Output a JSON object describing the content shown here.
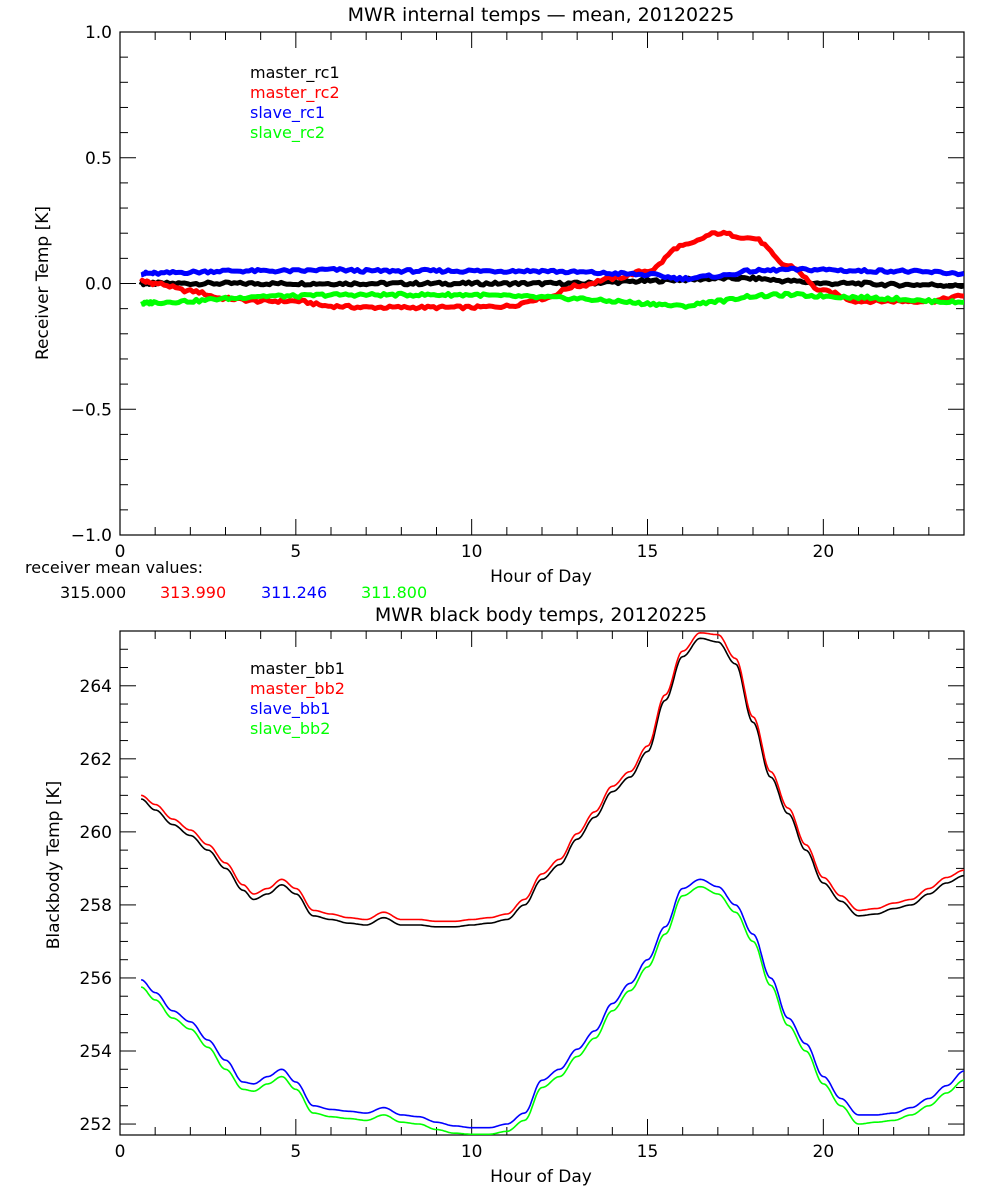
{
  "chart_data": [
    {
      "type": "line",
      "title": "MWR internal temps — mean, 20120225",
      "xlabel": "Hour of Day",
      "ylabel": "Receiver Temp [K]",
      "xlim": [
        0,
        24
      ],
      "ylim": [
        -1.0,
        1.0
      ],
      "xticks": [
        0,
        5,
        10,
        15,
        20
      ],
      "xtick_labels": [
        "0",
        "5",
        "10",
        "15",
        "20"
      ],
      "yticks": [
        -1.0,
        -0.5,
        0.0,
        0.5,
        1.0
      ],
      "ytick_labels": [
        "−1.0",
        "−0.5",
        "0.0",
        "0.5",
        "1.0"
      ],
      "grid": false,
      "legend_position": "top-left",
      "x": [
        0.6,
        1,
        2,
        3,
        4,
        5,
        6,
        7,
        8,
        9,
        10,
        11,
        12,
        13,
        14,
        15,
        16,
        17,
        18,
        19,
        20,
        21,
        22,
        23,
        24
      ],
      "series": [
        {
          "name": "master_rc1",
          "color": "#000000",
          "values": [
            0.0,
            0.0,
            0.0,
            0.0,
            0.0,
            0.0,
            0.0,
            0.0,
            0.0,
            0.0,
            0.0,
            0.0,
            0.0,
            0.0,
            0.005,
            0.01,
            0.015,
            0.02,
            0.02,
            0.01,
            0.0,
            0.0,
            -0.005,
            -0.005,
            -0.01
          ]
        },
        {
          "name": "master_rc2",
          "color": "#ff0000",
          "values": [
            0.01,
            0.0,
            -0.03,
            -0.06,
            -0.07,
            -0.07,
            -0.09,
            -0.095,
            -0.095,
            -0.095,
            -0.095,
            -0.09,
            -0.06,
            -0.01,
            0.02,
            0.05,
            0.15,
            0.2,
            0.18,
            0.07,
            -0.03,
            -0.07,
            -0.07,
            -0.07,
            -0.05
          ]
        },
        {
          "name": "slave_rc1",
          "color": "#0000ff",
          "values": [
            0.04,
            0.04,
            0.045,
            0.05,
            0.05,
            0.05,
            0.055,
            0.05,
            0.05,
            0.05,
            0.05,
            0.05,
            0.05,
            0.045,
            0.04,
            0.035,
            0.02,
            0.03,
            0.05,
            0.055,
            0.055,
            0.05,
            0.05,
            0.045,
            0.04
          ]
        },
        {
          "name": "slave_rc2",
          "color": "#00ff00",
          "values": [
            -0.08,
            -0.075,
            -0.07,
            -0.06,
            -0.05,
            -0.05,
            -0.045,
            -0.045,
            -0.045,
            -0.045,
            -0.045,
            -0.05,
            -0.055,
            -0.06,
            -0.07,
            -0.08,
            -0.09,
            -0.07,
            -0.05,
            -0.045,
            -0.05,
            -0.055,
            -0.06,
            -0.07,
            -0.075
          ]
        }
      ]
    },
    {
      "type": "line",
      "title": "MWR black body temps, 20120225",
      "xlabel": "Hour of Day",
      "ylabel": "Blackbody Temp [K]",
      "xlim": [
        0,
        24
      ],
      "ylim": [
        251.7,
        265.5
      ],
      "xticks": [
        0,
        5,
        10,
        15,
        20
      ],
      "xtick_labels": [
        "0",
        "5",
        "10",
        "15",
        "20"
      ],
      "yticks": [
        252,
        254,
        256,
        258,
        260,
        262,
        264
      ],
      "ytick_labels": [
        "252",
        "254",
        "256",
        "258",
        "260",
        "262",
        "264"
      ],
      "grid": false,
      "legend_position": "top-left",
      "x": [
        0.6,
        1,
        1.5,
        2,
        2.5,
        3,
        3.5,
        3.8,
        4.2,
        4.6,
        5,
        5.5,
        6,
        6.5,
        7,
        7.5,
        8,
        8.5,
        9,
        9.5,
        10,
        10.5,
        11,
        11.5,
        12,
        12.5,
        13,
        13.5,
        14,
        14.5,
        15,
        15.5,
        16,
        16.5,
        17,
        17.5,
        18,
        18.5,
        19,
        19.5,
        20,
        20.5,
        21,
        21.5,
        22,
        22.5,
        23,
        23.5,
        24
      ],
      "series": [
        {
          "name": "master_bb1",
          "color": "#000000",
          "values": [
            260.9,
            260.6,
            260.2,
            259.9,
            259.5,
            259.0,
            258.4,
            258.15,
            258.3,
            258.55,
            258.3,
            257.7,
            257.6,
            257.5,
            257.45,
            257.65,
            257.45,
            257.45,
            257.4,
            257.4,
            257.45,
            257.5,
            257.6,
            258.0,
            258.7,
            259.1,
            259.8,
            260.4,
            261.1,
            261.5,
            262.2,
            263.6,
            264.8,
            265.3,
            265.2,
            264.6,
            263.0,
            261.5,
            260.5,
            259.5,
            258.6,
            258.1,
            257.7,
            257.75,
            257.9,
            258.0,
            258.3,
            258.6,
            258.8
          ]
        },
        {
          "name": "master_bb2",
          "color": "#ff0000",
          "values": [
            261.0,
            260.75,
            260.35,
            260.05,
            259.65,
            259.15,
            258.55,
            258.3,
            258.45,
            258.7,
            258.45,
            257.85,
            257.75,
            257.65,
            257.6,
            257.8,
            257.6,
            257.6,
            257.55,
            257.55,
            257.6,
            257.65,
            257.75,
            258.15,
            258.85,
            259.25,
            259.95,
            260.55,
            261.25,
            261.65,
            262.35,
            263.75,
            264.95,
            265.45,
            265.4,
            264.75,
            263.15,
            261.65,
            260.65,
            259.65,
            258.75,
            258.25,
            257.85,
            257.9,
            258.05,
            258.15,
            258.45,
            258.75,
            258.95
          ]
        },
        {
          "name": "slave_bb1",
          "color": "#0000ff",
          "values": [
            255.95,
            255.6,
            255.1,
            254.8,
            254.3,
            253.75,
            253.15,
            253.1,
            253.3,
            253.5,
            253.15,
            252.5,
            252.4,
            252.35,
            252.3,
            252.45,
            252.25,
            252.2,
            252.05,
            251.95,
            251.9,
            251.9,
            252.0,
            252.3,
            253.2,
            253.5,
            254.05,
            254.55,
            255.3,
            255.85,
            256.5,
            257.4,
            258.45,
            258.7,
            258.5,
            258.0,
            257.2,
            256.0,
            254.9,
            254.2,
            253.3,
            252.7,
            252.25,
            252.25,
            252.3,
            252.45,
            252.7,
            253.05,
            253.45
          ]
        },
        {
          "name": "slave_bb2",
          "color": "#00ff00",
          "values": [
            255.75,
            255.4,
            254.9,
            254.6,
            254.1,
            253.5,
            252.95,
            252.9,
            253.1,
            253.3,
            252.95,
            252.3,
            252.2,
            252.15,
            252.1,
            252.25,
            252.05,
            252.0,
            251.85,
            251.75,
            251.72,
            251.72,
            251.8,
            252.1,
            253.0,
            253.3,
            253.85,
            254.35,
            255.1,
            255.65,
            256.3,
            257.2,
            258.25,
            258.5,
            258.3,
            257.8,
            257.0,
            255.8,
            254.7,
            254.0,
            253.1,
            252.5,
            252.0,
            252.05,
            252.1,
            252.25,
            252.5,
            252.85,
            253.2
          ]
        }
      ]
    }
  ],
  "receiver_mean": {
    "label": "receiver mean values:",
    "values": [
      {
        "text": "315.000",
        "color": "#000000"
      },
      {
        "text": "313.990",
        "color": "#ff0000"
      },
      {
        "text": "311.246",
        "color": "#0000ff"
      },
      {
        "text": "311.800",
        "color": "#00ff00"
      }
    ]
  }
}
